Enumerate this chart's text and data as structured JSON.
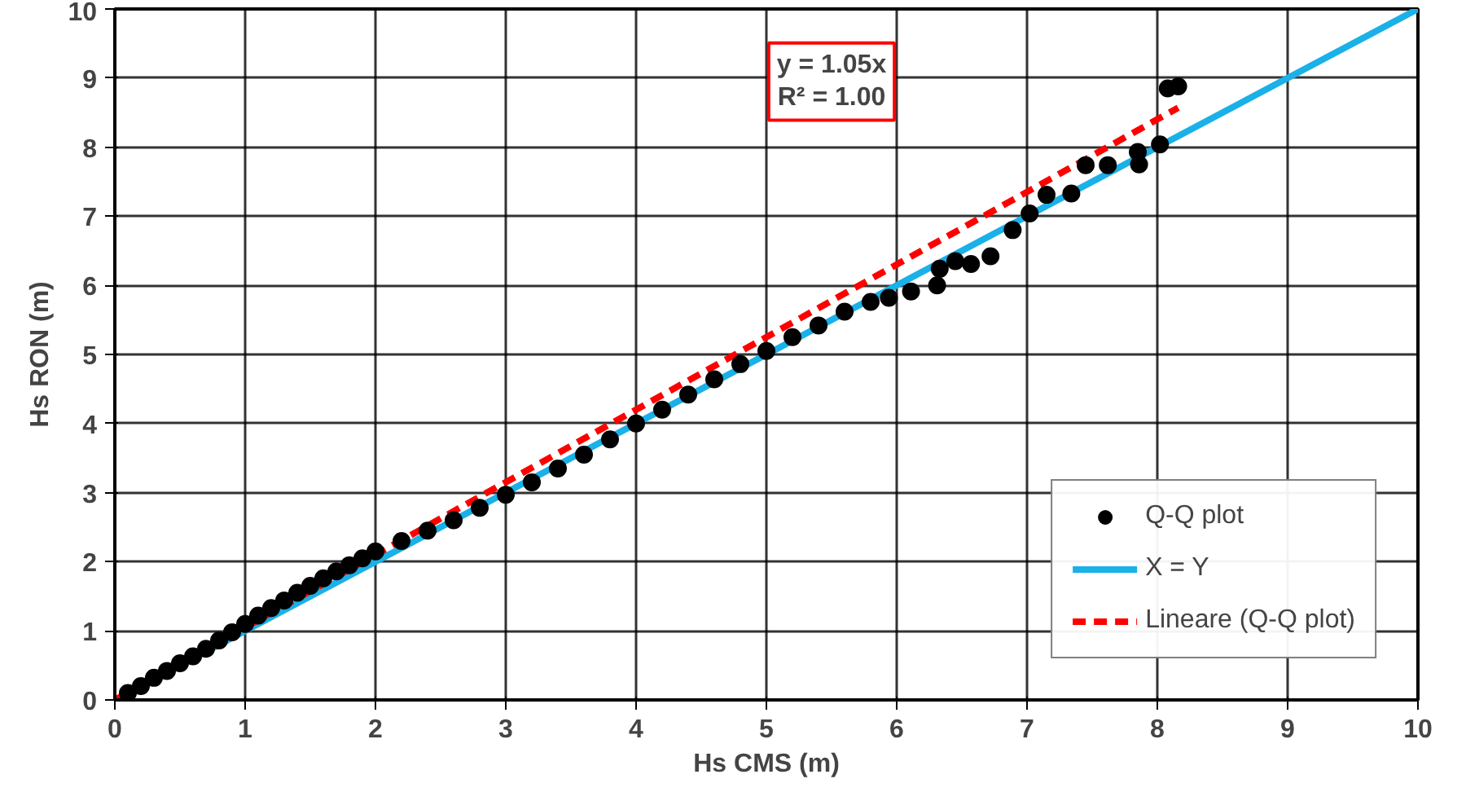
{
  "chart_data": {
    "type": "scatter",
    "xlabel": "Hs CMS (m)",
    "ylabel": "Hs RON (m)",
    "xlim": [
      0,
      10
    ],
    "ylim": [
      0,
      10
    ],
    "xticks": [
      0,
      1,
      2,
      3,
      4,
      5,
      6,
      7,
      8,
      9,
      10
    ],
    "yticks": [
      0,
      1,
      2,
      3,
      4,
      5,
      6,
      7,
      8,
      9,
      10
    ],
    "grid": true,
    "legend": "bottom right",
    "annotations": [
      "y = 1.05x\nR² = 1.00"
    ],
    "series": [
      {
        "name": "Q-Q plot",
        "marker": "circle",
        "color": "#000000",
        "x": [
          0.1,
          0.2,
          0.3,
          0.4,
          0.5,
          0.6,
          0.7,
          0.8,
          0.9,
          1.0,
          1.1,
          1.2,
          1.3,
          1.4,
          1.5,
          1.6,
          1.7,
          1.8,
          1.9,
          2.0,
          2.2,
          2.4,
          2.6,
          2.8,
          3.0,
          3.2,
          3.4,
          3.6,
          3.8,
          4.0,
          4.2,
          4.4,
          4.6,
          4.8,
          5.0,
          5.2,
          5.4,
          5.6,
          5.8,
          5.94,
          6.11,
          6.31,
          6.33,
          6.45,
          6.57,
          6.72,
          6.85,
          6.89,
          7.02,
          7.15,
          7.34,
          7.45,
          7.62,
          7.85,
          7.86,
          8.02,
          8.08,
          8.16
        ],
        "values": [
          0.1,
          0.2,
          0.32,
          0.42,
          0.53,
          0.63,
          0.74,
          0.86,
          0.98,
          1.1,
          1.22,
          1.33,
          1.44,
          1.55,
          1.65,
          1.76,
          1.86,
          1.95,
          2.05,
          2.15,
          2.3,
          2.45,
          2.6,
          2.78,
          2.97,
          3.15,
          3.35,
          3.55,
          3.77,
          4.0,
          4.2,
          4.42,
          4.64,
          4.86,
          5.05,
          5.25,
          5.42,
          5.62,
          5.76,
          5.82,
          5.91,
          6.0,
          6.24,
          6.35,
          6.31,
          6.42,
          null,
          6.8,
          7.04,
          7.31,
          7.33,
          7.74,
          7.74,
          7.93,
          7.75,
          8.04,
          8.85,
          8.88
        ]
      },
      {
        "name": "X = Y",
        "type": "line",
        "line_style": "solid",
        "color": "#1ab0e8",
        "x": [
          0,
          10
        ],
        "values": [
          0,
          10
        ]
      },
      {
        "name": "Lineare (Q-Q plot)",
        "type": "line",
        "line_style": "dashed",
        "color": "#ff0000",
        "x": [
          0,
          8.16
        ],
        "values": [
          0,
          8.57
        ]
      }
    ]
  }
}
